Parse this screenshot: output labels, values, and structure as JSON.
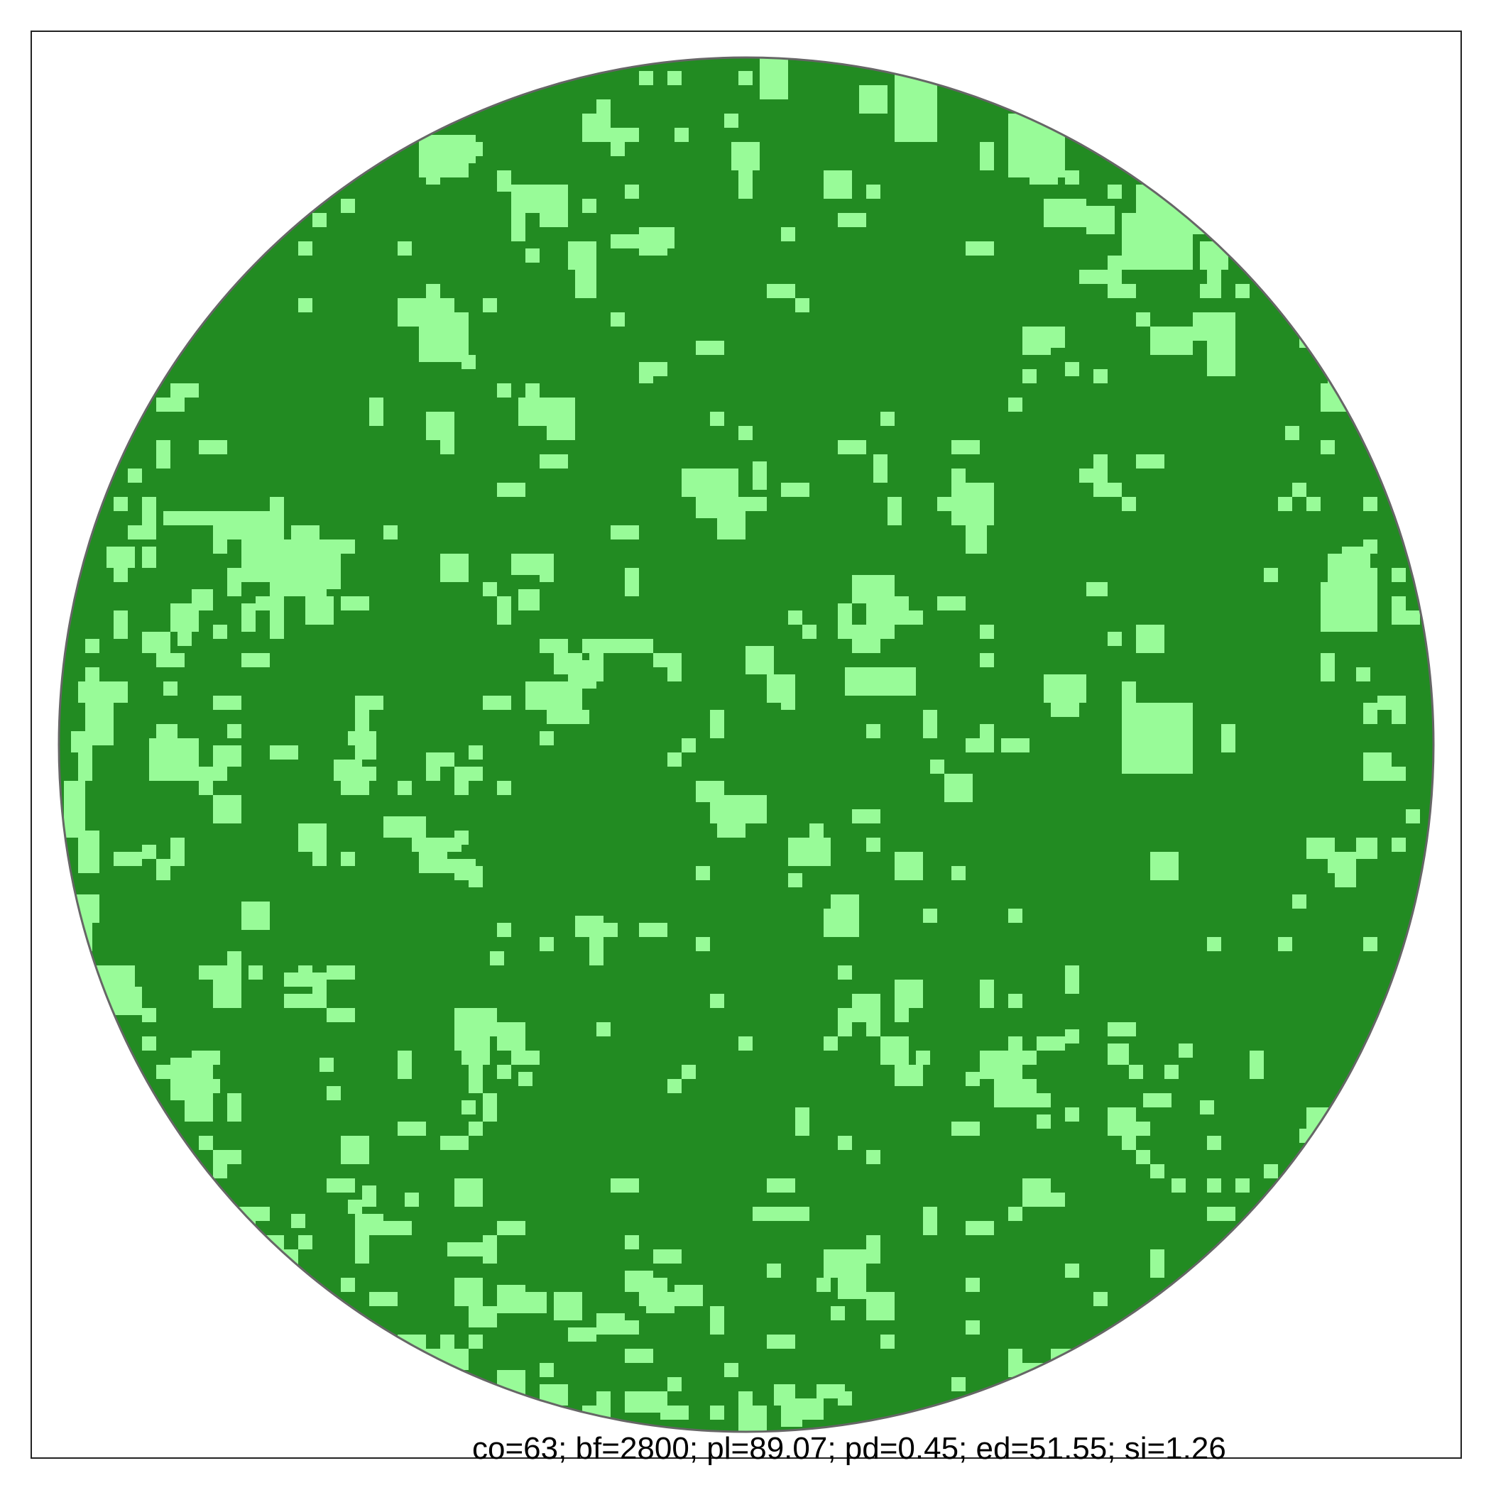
{
  "map": {
    "forest_color": "#228b22",
    "gap_color": "#98fb98",
    "outline_color": "#666666",
    "frame_color": "#222222"
  },
  "caption": {
    "text": "co=63; bf=2800; pl=89.07; pd=0.45; ed=51.55; si=1.26"
  }
}
